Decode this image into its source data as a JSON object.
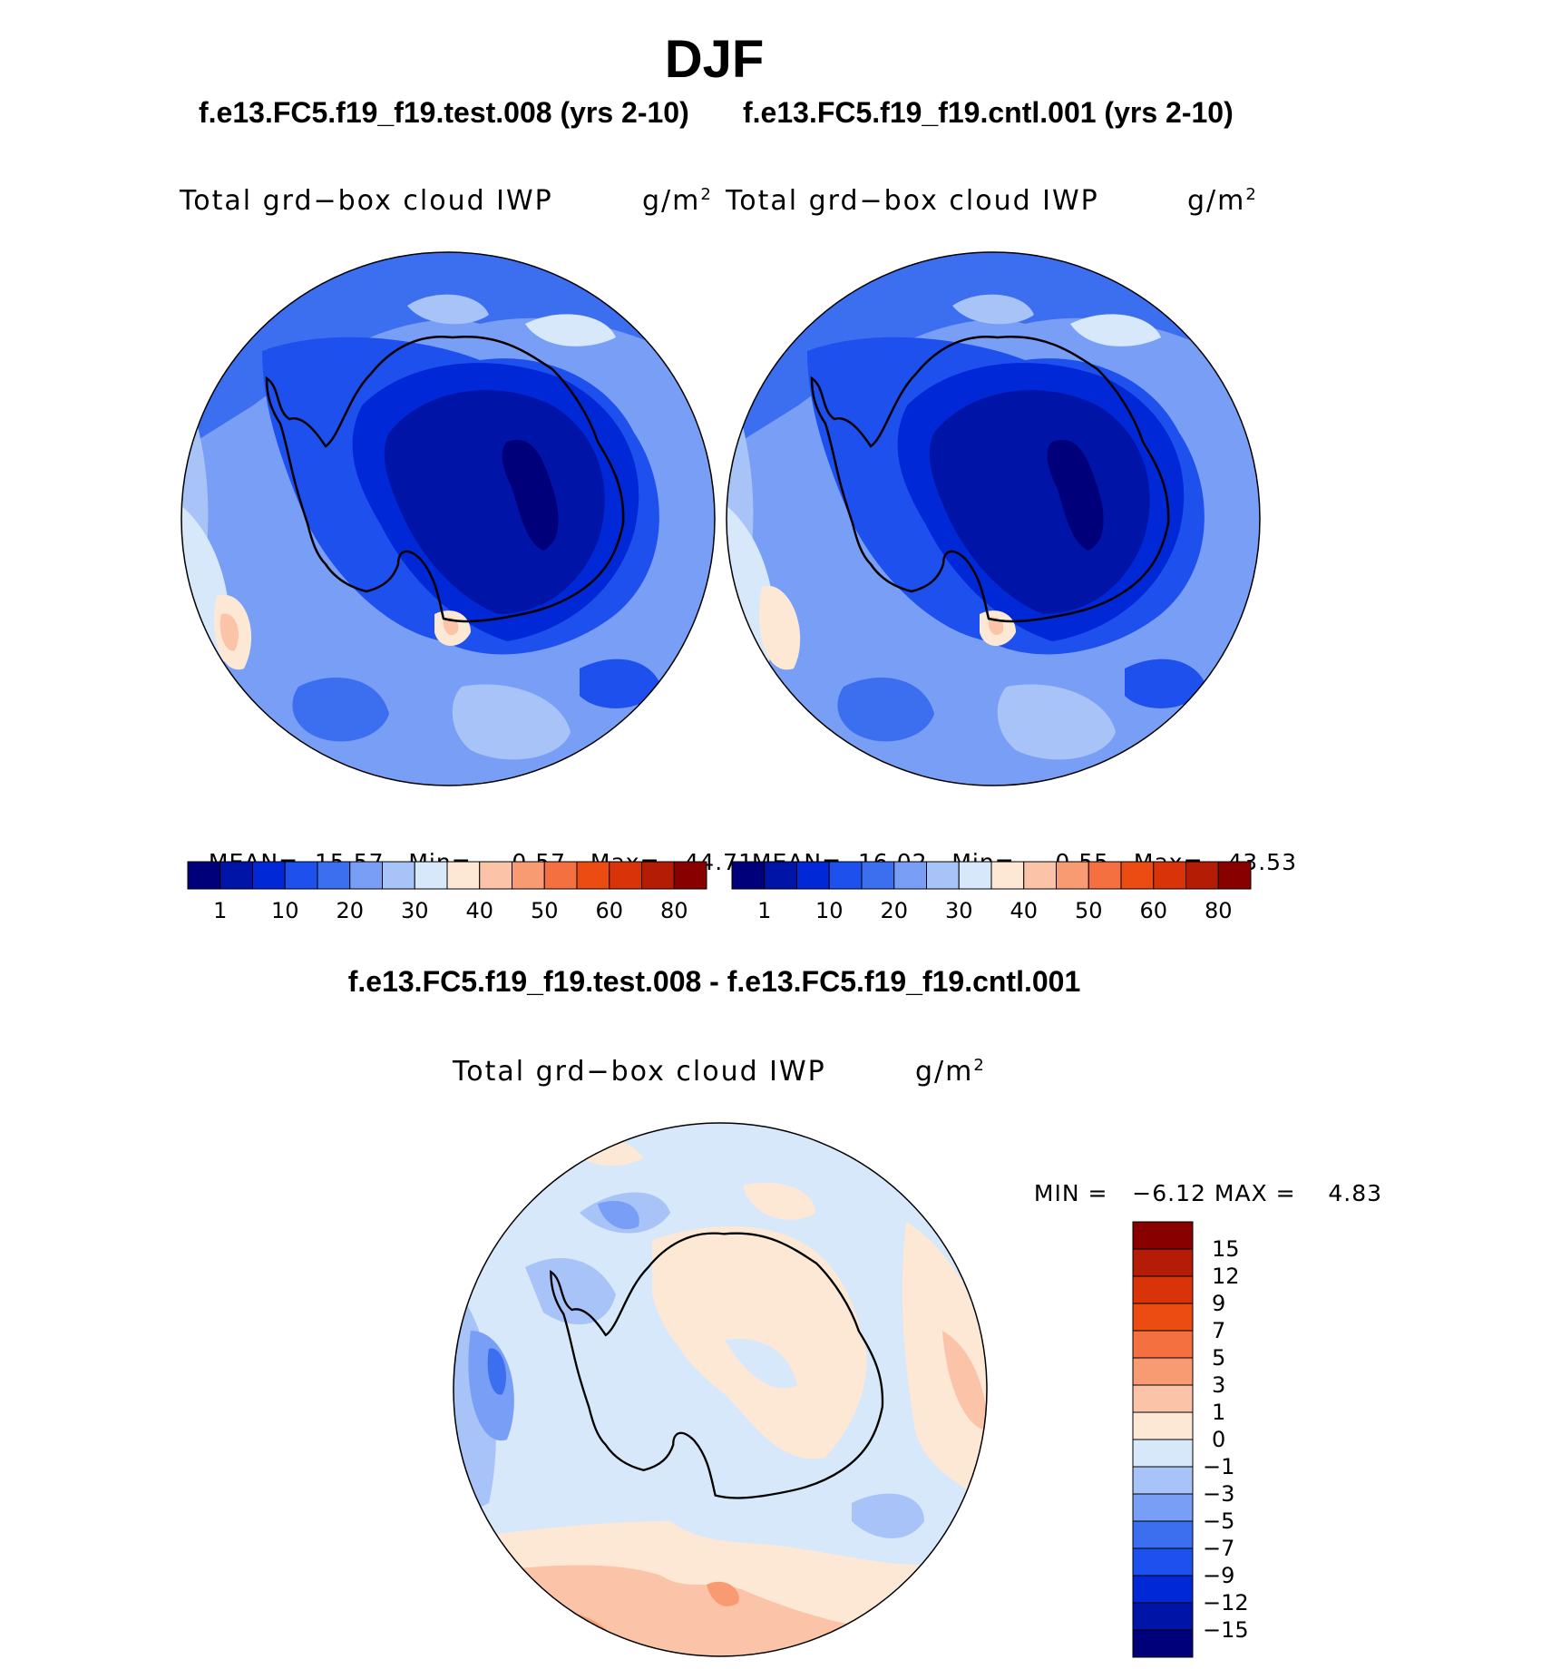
{
  "title": "DJF",
  "panels": [
    {
      "case_title": "f.e13.FC5.f19_f19.test.008 (yrs 2-10)",
      "variable": "Total grd−box cloud IWP",
      "unit": "g/m",
      "unit_exp": "2",
      "stats": {
        "mean_label": "MEAN=",
        "mean": "15.57",
        "min_label": "Min=",
        "min": "0.57",
        "max_label": "Max=",
        "max": "44.71"
      }
    },
    {
      "case_title": "f.e13.FC5.f19_f19.cntl.001 (yrs 2-10)",
      "variable": "Total grd−box cloud IWP",
      "unit": "g/m",
      "unit_exp": "2",
      "stats": {
        "mean_label": "MEAN=",
        "mean": "16.02",
        "min_label": "Min=",
        "min": "0.55",
        "max_label": "Max=",
        "max": "43.53"
      }
    }
  ],
  "diff_panel": {
    "title": "f.e13.FC5.f19_f19.test.008 - f.e13.FC5.f19_f19.cntl.001",
    "variable": "Total grd−box cloud IWP",
    "unit": "g/m",
    "unit_exp": "2",
    "stats": {
      "min_label": "MIN =",
      "min": "−6.12",
      "max_label": "MAX =",
      "max": "4.83"
    }
  },
  "colorbar_abs": {
    "colors": [
      "#00007a",
      "#0014a8",
      "#0028d6",
      "#1e50ee",
      "#3c6ef0",
      "#789ff5",
      "#a8c3f8",
      "#d6e8fa",
      "#fde8d6",
      "#fbc4a8",
      "#f89a72",
      "#f57040",
      "#ec4c12",
      "#d93409",
      "#b51c06",
      "#880000"
    ],
    "ticks": [
      "1",
      "10",
      "20",
      "30",
      "40",
      "50",
      "60",
      "80"
    ]
  },
  "colorbar_diff": {
    "colors": [
      "#880000",
      "#b51c06",
      "#d93409",
      "#ec4c12",
      "#f57040",
      "#f89a72",
      "#fbc4a8",
      "#fde8d6",
      "#d6e8fa",
      "#a8c3f8",
      "#789ff5",
      "#3c6ef0",
      "#1e50ee",
      "#0028d6",
      "#0014a8",
      "#00007a"
    ],
    "ticks": [
      "15",
      "12",
      "9",
      "7",
      "5",
      "3",
      "1",
      "0",
      "−1",
      "−3",
      "−5",
      "−7",
      "−9",
      "−12",
      "−15"
    ]
  }
}
